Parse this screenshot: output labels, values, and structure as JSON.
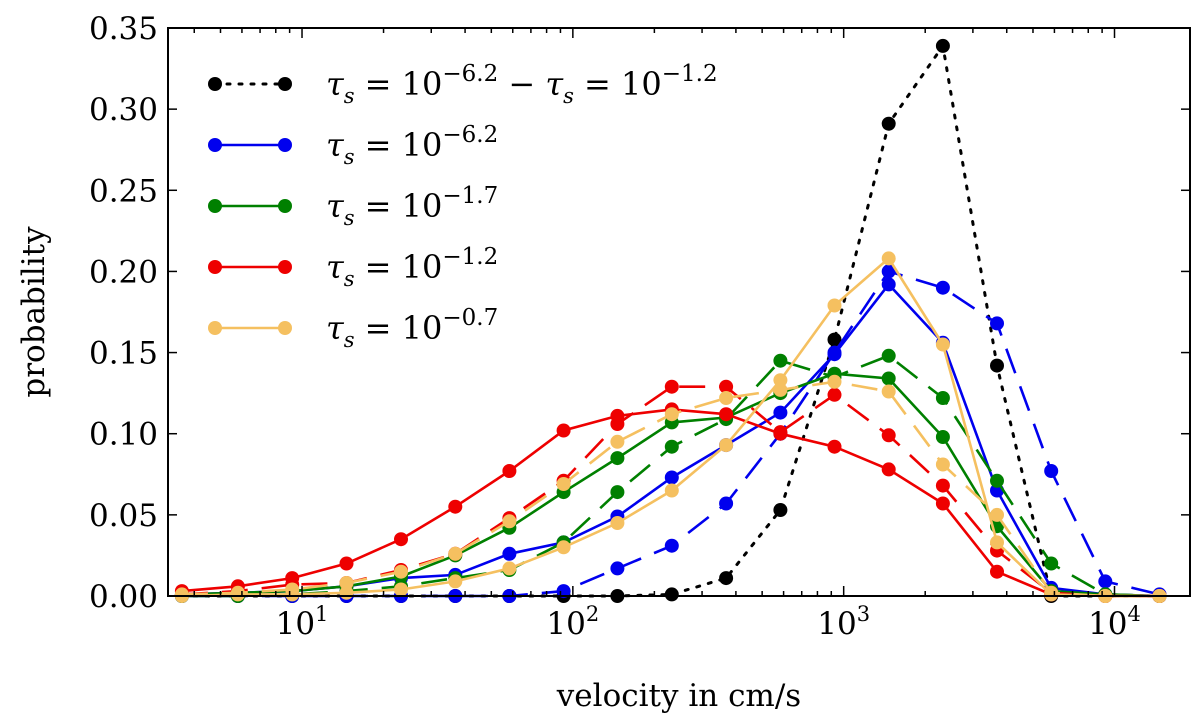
{
  "chart_data": {
    "type": "line",
    "xlabel": "velocity in cm/s",
    "ylabel": "probability",
    "xscale": "log",
    "xlim": [
      3.2,
      19000
    ],
    "ylim": [
      0,
      0.35
    ],
    "x_ticks": [
      {
        "value": 10,
        "base": "10",
        "exp": "1"
      },
      {
        "value": 100,
        "base": "10",
        "exp": "2"
      },
      {
        "value": 1000,
        "base": "10",
        "exp": "3"
      },
      {
        "value": 10000,
        "base": "10",
        "exp": "4"
      }
    ],
    "y_ticks": [
      "0.00",
      "0.05",
      "0.10",
      "0.15",
      "0.20",
      "0.25",
      "0.30",
      "0.35"
    ],
    "grid": false,
    "legend_position": "top-left",
    "legend": [
      {
        "label_parts": [
          "τ",
          "s",
          " = 10",
          "−6.2",
          " − ",
          "τ",
          "s",
          " = 10",
          "−1.2"
        ],
        "color": "#000000",
        "style": "dotted"
      },
      {
        "label_parts": [
          "τ",
          "s",
          " = 10",
          "−6.2"
        ],
        "color": "#0000ee",
        "style": "solid"
      },
      {
        "label_parts": [
          "τ",
          "s",
          " = 10",
          "−1.7"
        ],
        "color": "#008000",
        "style": "solid"
      },
      {
        "label_parts": [
          "τ",
          "s",
          " = 10",
          "−1.2"
        ],
        "color": "#ee0000",
        "style": "solid"
      },
      {
        "label_parts": [
          "τ",
          "s",
          " = 10",
          "−0.7"
        ],
        "color": "#f5c060",
        "style": "solid"
      }
    ],
    "series": [
      {
        "color": "#000000",
        "style": "dotted",
        "x": [
          3.6,
          5.8,
          9.2,
          14.6,
          23.2,
          36.8,
          58.3,
          92.4,
          146,
          232,
          368,
          584,
          925,
          1466,
          2324,
          3683,
          5837,
          9250,
          14660
        ],
        "y": [
          0,
          0,
          0,
          0,
          0,
          0,
          0,
          0,
          0,
          0.001,
          0.011,
          0.053,
          0.158,
          0.291,
          0.339,
          0.142,
          0,
          0,
          0
        ]
      },
      {
        "color": "#0000ee",
        "style": "solid",
        "x": [
          3.6,
          5.8,
          9.2,
          14.6,
          23.2,
          36.8,
          58.3,
          92.4,
          146,
          232,
          368,
          584,
          925,
          1466,
          2324,
          3683,
          5837,
          9250,
          14660
        ],
        "y": [
          0.001,
          0.002,
          0.003,
          0.006,
          0.011,
          0.013,
          0.026,
          0.033,
          0.049,
          0.073,
          0.093,
          0.113,
          0.149,
          0.192,
          0.156,
          0.065,
          0.005,
          0.001,
          0.0
        ]
      },
      {
        "color": "#0000ee",
        "style": "dashed",
        "x": [
          3.6,
          5.8,
          9.2,
          14.6,
          23.2,
          36.8,
          58.3,
          92.4,
          146,
          232,
          368,
          584,
          925,
          1466,
          2324,
          3683,
          5837,
          9250,
          14660
        ],
        "y": [
          0,
          0,
          0,
          0,
          0,
          0,
          0,
          0.003,
          0.017,
          0.031,
          0.057,
          0.1,
          0.15,
          0.2,
          0.19,
          0.168,
          0.077,
          0.009,
          0.001
        ]
      },
      {
        "color": "#008000",
        "style": "solid",
        "x": [
          3.6,
          5.8,
          9.2,
          14.6,
          23.2,
          36.8,
          58.3,
          92.4,
          146,
          232,
          368,
          584,
          925,
          1466,
          2324,
          3683,
          5837,
          9250,
          14660
        ],
        "y": [
          0.001,
          0.002,
          0.003,
          0.006,
          0.012,
          0.025,
          0.042,
          0.064,
          0.085,
          0.107,
          0.11,
          0.125,
          0.137,
          0.134,
          0.098,
          0.043,
          0.003,
          0.001,
          0.0
        ]
      },
      {
        "color": "#008000",
        "style": "dashed",
        "x": [
          3.6,
          5.8,
          9.2,
          14.6,
          23.2,
          36.8,
          58.3,
          92.4,
          146,
          232,
          368,
          584,
          925,
          1466,
          2324,
          3683,
          5837,
          9250,
          14660
        ],
        "y": [
          0,
          0,
          0.001,
          0.003,
          0.006,
          0.011,
          0.016,
          0.033,
          0.064,
          0.092,
          0.109,
          0.145,
          0.135,
          0.148,
          0.122,
          0.071,
          0.02,
          0.001,
          0.0
        ]
      },
      {
        "color": "#ee0000",
        "style": "solid",
        "x": [
          3.6,
          5.8,
          9.2,
          14.6,
          23.2,
          36.8,
          58.3,
          92.4,
          146,
          232,
          368,
          584,
          925,
          1466,
          2324,
          3683,
          5837,
          9250,
          14660
        ],
        "y": [
          0.003,
          0.006,
          0.011,
          0.02,
          0.035,
          0.055,
          0.077,
          0.102,
          0.111,
          0.115,
          0.112,
          0.1,
          0.092,
          0.078,
          0.057,
          0.015,
          0.001,
          0.0,
          0.0
        ]
      },
      {
        "color": "#ee0000",
        "style": "dashed",
        "x": [
          3.6,
          5.8,
          9.2,
          14.6,
          23.2,
          36.8,
          58.3,
          92.4,
          146,
          232,
          368,
          584,
          925,
          1466,
          2324,
          3683,
          5837,
          9250,
          14660
        ],
        "y": [
          0.001,
          0.003,
          0.007,
          0.008,
          0.016,
          0.026,
          0.048,
          0.071,
          0.106,
          0.129,
          0.129,
          0.101,
          0.124,
          0.099,
          0.068,
          0.028,
          0.002,
          0.0,
          0.0
        ]
      },
      {
        "color": "#f5c060",
        "style": "solid",
        "x": [
          3.6,
          5.8,
          9.2,
          14.6,
          23.2,
          36.8,
          58.3,
          92.4,
          146,
          232,
          368,
          584,
          925,
          1466,
          2324,
          3683,
          5837,
          9250,
          14660
        ],
        "y": [
          0.0,
          0.001,
          0.001,
          0.002,
          0.004,
          0.009,
          0.017,
          0.03,
          0.045,
          0.065,
          0.093,
          0.133,
          0.179,
          0.208,
          0.155,
          0.033,
          0.001,
          0.0,
          0.0
        ]
      },
      {
        "color": "#f5c060",
        "style": "dashed",
        "x": [
          3.6,
          5.8,
          9.2,
          14.6,
          23.2,
          36.8,
          58.3,
          92.4,
          146,
          232,
          368,
          584,
          925,
          1466,
          2324,
          3683,
          5837,
          9250,
          14660
        ],
        "y": [
          0.001,
          0.002,
          0.004,
          0.008,
          0.015,
          0.026,
          0.046,
          0.069,
          0.095,
          0.112,
          0.122,
          0.127,
          0.132,
          0.126,
          0.081,
          0.05,
          0.002,
          0.0,
          0.0
        ]
      }
    ]
  }
}
